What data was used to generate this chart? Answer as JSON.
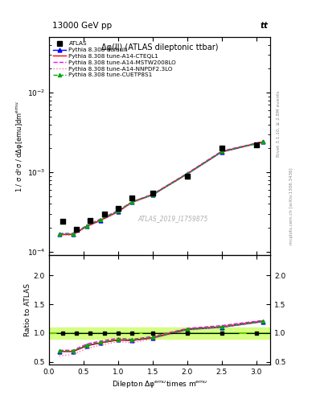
{
  "title_top": "13000 GeV pp",
  "title_right": "tt",
  "plot_title": "Δφ(ll) (ATLAS dileptonic ttbar)",
  "watermark": "ATLAS_2019_I1759875",
  "xlabel": "Dilepton Δφ$^{emu}$times m$^{emu}$",
  "ylabel_main": "1 / σ d²σ / dΔφ[emu]dm$^{emu}$",
  "ylabel_ratio": "Ratio to ATLAS",
  "right_label": "mcplots.cern.ch [arXiv:1306.3436]",
  "right_label2": "Rivet 3.1.10, ≥ 2.8M events",
  "atlas_x": [
    0.2,
    0.4,
    0.6,
    0.8,
    1.0,
    1.2,
    1.5,
    2.0,
    2.5,
    3.0
  ],
  "atlas_y": [
    0.00024,
    0.00019,
    0.00025,
    0.0003,
    0.00035,
    0.00048,
    0.00055,
    0.0009,
    0.002,
    0.0022
  ],
  "x_common": [
    0.15,
    0.35,
    0.55,
    0.75,
    1.0,
    1.2,
    1.5,
    2.0,
    2.5,
    3.1
  ],
  "py_default_y": [
    0.000165,
    0.000165,
    0.00021,
    0.00025,
    0.00032,
    0.00042,
    0.00052,
    0.00095,
    0.0018,
    0.0024
  ],
  "py_cteql1_y": [
    0.000165,
    0.000165,
    0.00021,
    0.00025,
    0.00032,
    0.00042,
    0.000525,
    0.00096,
    0.00182,
    0.00242
  ],
  "py_mstw_y": [
    0.00017,
    0.00017,
    0.000215,
    0.00026,
    0.00033,
    0.000425,
    0.00053,
    0.00097,
    0.00185,
    0.00243
  ],
  "py_nnpdf_y": [
    0.000162,
    0.000162,
    0.000205,
    0.000245,
    0.000315,
    0.00041,
    0.000515,
    0.00094,
    0.00179,
    0.00238
  ],
  "py_cuetp_y": [
    0.000168,
    0.000167,
    0.000212,
    0.000255,
    0.000325,
    0.000422,
    0.000525,
    0.000955,
    0.00182,
    0.00241
  ],
  "ratio_default": [
    0.68,
    0.68,
    0.78,
    0.83,
    0.88,
    0.87,
    0.915,
    1.06,
    1.1,
    1.2
  ],
  "ratio_cteql1": [
    0.68,
    0.68,
    0.78,
    0.83,
    0.88,
    0.87,
    0.92,
    1.07,
    1.11,
    1.21
  ],
  "ratio_mstw": [
    0.7,
    0.7,
    0.81,
    0.86,
    0.91,
    0.89,
    0.94,
    1.08,
    1.13,
    1.22
  ],
  "ratio_nnpdf": [
    0.6,
    0.63,
    0.73,
    0.79,
    0.85,
    0.83,
    0.9,
    1.05,
    1.1,
    1.19
  ],
  "ratio_cuetp": [
    0.69,
    0.69,
    0.79,
    0.84,
    0.89,
    0.88,
    0.925,
    1.065,
    1.11,
    1.205
  ],
  "atlas_ratio_x": [
    0.2,
    0.4,
    0.6,
    0.8,
    1.0,
    1.2,
    1.5,
    2.0,
    2.5,
    3.0
  ],
  "atlas_ratio_xerr": [
    0.1,
    0.1,
    0.1,
    0.1,
    0.1,
    0.1,
    0.15,
    0.25,
    0.25,
    0.15
  ],
  "band_y_low": 0.9,
  "band_y_high": 1.1,
  "color_default": "#0000ff",
  "color_cteql1": "#ff0000",
  "color_mstw": "#ff00ff",
  "color_nnpdf": "#ff69b4",
  "color_cuetp": "#00aa00",
  "color_atlas": "#000000",
  "color_band_outer": "#ccff66",
  "color_band_inner": "#66cc00",
  "ylim_main": [
    9e-05,
    0.05
  ],
  "ylim_ratio": [
    0.45,
    2.35
  ],
  "xlim": [
    0.0,
    3.2
  ],
  "yticks_ratio": [
    0.5,
    1.0,
    1.5,
    2.0
  ]
}
